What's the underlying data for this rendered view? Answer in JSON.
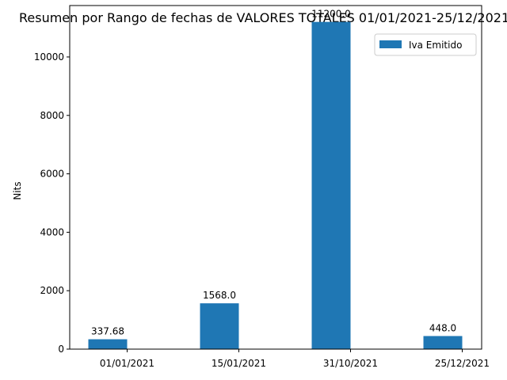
{
  "chart_data": {
    "type": "bar",
    "title": "Resumen por Rango de fechas de VALORES TOTALES 01/01/2021-25/12/2021",
    "xlabel": "",
    "ylabel": "Nits",
    "categories": [
      "01/01/2021",
      "15/01/2021",
      "31/10/2021",
      "25/12/2021"
    ],
    "series": [
      {
        "name": "Iva Emitido",
        "values": [
          337.68,
          1568.0,
          11200.0,
          448.0
        ],
        "labels": [
          "337.68",
          "1568.0",
          "11200.0",
          "448.0"
        ],
        "color": "#1f77b4"
      }
    ],
    "yticks": [
      0,
      2000,
      4000,
      6000,
      8000,
      10000
    ],
    "ylim": [
      0,
      11760
    ],
    "grid": false,
    "legend_position": "top-right"
  }
}
